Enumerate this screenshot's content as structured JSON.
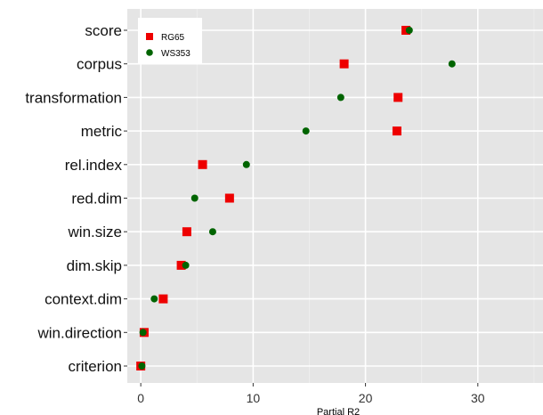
{
  "chart_data": {
    "type": "scatter",
    "orientation": "horizontal-dot-plot",
    "categories": [
      "score",
      "corpus",
      "transformation",
      "metric",
      "rel.index",
      "red.dim",
      "win.size",
      "dim.skip",
      "context.dim",
      "win.direction",
      "criterion"
    ],
    "series": [
      {
        "name": "RG65",
        "marker": "square",
        "color": "#ee0000",
        "values": [
          23.6,
          18.1,
          22.9,
          22.8,
          5.5,
          7.9,
          4.1,
          3.6,
          2.0,
          0.3,
          0.0
        ]
      },
      {
        "name": "WS353",
        "marker": "circle",
        "color": "#006400",
        "values": [
          23.9,
          27.7,
          17.8,
          14.7,
          9.4,
          4.8,
          6.4,
          4.0,
          1.2,
          0.2,
          0.1
        ]
      }
    ],
    "xlabel": "Partial R2",
    "xlim": [
      -1.2,
      35.8
    ],
    "xticks": [
      0,
      10,
      20,
      30
    ],
    "grid": true,
    "background": "#e5e5e5",
    "legend_position": "top-left"
  }
}
